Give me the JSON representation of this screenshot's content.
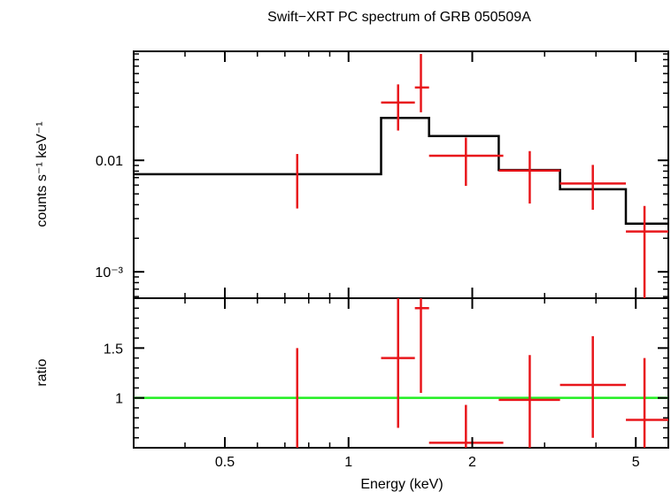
{
  "chart_data": {
    "type": "scatter",
    "title": "Swift−XRT PC spectrum of GRB 050509A",
    "x_axis": {
      "label": "Energy (keV)",
      "scale": "log",
      "range": [
        0.3,
        6.0
      ],
      "ticks": [
        {
          "value": 0.5,
          "label": "0.5"
        },
        {
          "value": 1,
          "label": "1"
        },
        {
          "value": 2,
          "label": "2"
        },
        {
          "value": 5,
          "label": "5"
        }
      ]
    },
    "panels": [
      {
        "name": "spectrum",
        "ylabel": "counts s⁻¹ keV⁻¹",
        "y_scale": "log",
        "ylim": [
          0.00058,
          0.095
        ],
        "y_ticks": [
          {
            "value": 0.01,
            "label": "0.01"
          },
          {
            "value": 0.001,
            "label": "10⁻³"
          }
        ],
        "data": [
          {
            "x": 0.75,
            "xlo": 0.75,
            "xhi": 0.75,
            "y": 0.0074,
            "ylo": 0.0037,
            "yhi": 0.0114
          },
          {
            "x": 1.32,
            "xlo": 1.2,
            "xhi": 1.45,
            "y": 0.033,
            "ylo": 0.0185,
            "yhi": 0.048
          },
          {
            "x": 1.5,
            "xlo": 1.45,
            "xhi": 1.57,
            "y": 0.045,
            "ylo": 0.027,
            "yhi": 0.09
          },
          {
            "x": 1.93,
            "xlo": 1.57,
            "xhi": 2.38,
            "y": 0.011,
            "ylo": 0.0059,
            "yhi": 0.016
          },
          {
            "x": 2.76,
            "xlo": 2.32,
            "xhi": 3.27,
            "y": 0.0081,
            "ylo": 0.0041,
            "yhi": 0.0121
          },
          {
            "x": 3.93,
            "xlo": 3.27,
            "xhi": 4.73,
            "y": 0.0062,
            "ylo": 0.0036,
            "yhi": 0.0091
          },
          {
            "x": 5.25,
            "xlo": 4.73,
            "xhi": 6.0,
            "y": 0.0023,
            "ylo": 0.00058,
            "yhi": 0.0039
          }
        ],
        "model": {
          "edges": [
            0.3,
            1.2,
            1.45,
            1.57,
            2.32,
            3.27,
            4.73,
            6.0
          ],
          "values": [
            0.0075,
            0.024,
            0.024,
            0.0165,
            0.0082,
            0.0055,
            0.0027
          ]
        }
      },
      {
        "name": "ratio",
        "ylabel": "ratio",
        "y_scale": "linear",
        "ylim": [
          0.5,
          2.0
        ],
        "y_ticks": [
          {
            "value": 1.5,
            "label": "1.5"
          },
          {
            "value": 1,
            "label": "1"
          }
        ],
        "reference_line": 1,
        "data": [
          {
            "x": 0.75,
            "xlo": 0.75,
            "xhi": 0.75,
            "y": 0.98,
            "ylo": 0.5,
            "yhi": 1.5
          },
          {
            "x": 1.32,
            "xlo": 1.2,
            "xhi": 1.45,
            "y": 1.4,
            "ylo": 0.7,
            "yhi": 2.0
          },
          {
            "x": 1.5,
            "xlo": 1.45,
            "xhi": 1.57,
            "y": 1.9,
            "ylo": 1.05,
            "yhi": 2.0
          },
          {
            "x": 1.93,
            "xlo": 1.57,
            "xhi": 2.38,
            "y": 0.55,
            "ylo": 0.5,
            "yhi": 0.93
          },
          {
            "x": 2.76,
            "xlo": 2.32,
            "xhi": 3.27,
            "y": 0.98,
            "ylo": 0.5,
            "yhi": 1.43
          },
          {
            "x": 3.93,
            "xlo": 3.27,
            "xhi": 4.73,
            "y": 1.13,
            "ylo": 0.6,
            "yhi": 1.62
          },
          {
            "x": 5.25,
            "xlo": 4.73,
            "xhi": 6.0,
            "y": 0.78,
            "ylo": 0.5,
            "yhi": 1.4
          }
        ]
      }
    ],
    "colors": {
      "data": "#e8161b",
      "model": "#000000",
      "reference": "#20ee20"
    },
    "grid": false,
    "legend": "none"
  }
}
